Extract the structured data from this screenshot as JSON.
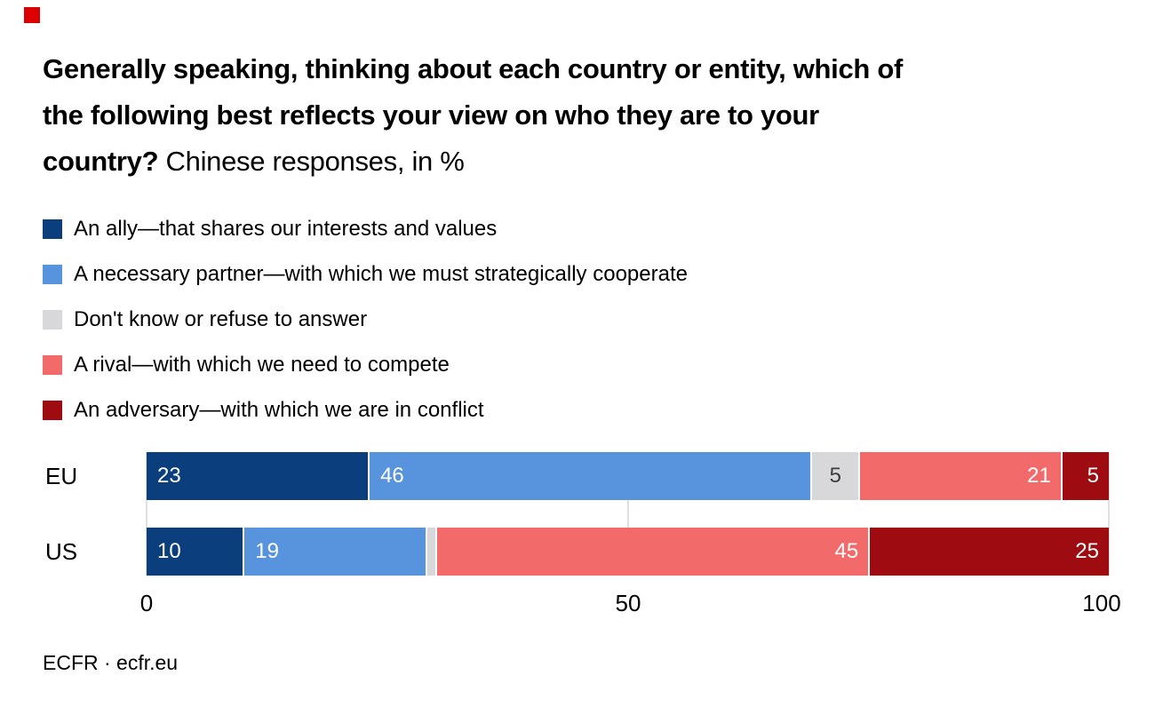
{
  "logo": {
    "name": "ecfr-red-square",
    "color": "#dd0000"
  },
  "title": {
    "line1": "Generally speaking, thinking about each country or entity, which of",
    "line2": "the following best reflects your view on who they are to your",
    "line3_bold": "country?",
    "line3_regular": "Chinese responses, in %"
  },
  "legend": [
    {
      "label": "An ally—that shares our interests and values",
      "color": "#0a3e7d"
    },
    {
      "label": "A necessary partner—with which we must strategically cooperate",
      "color": "#5894de"
    },
    {
      "label": "Don't know or refuse to answer",
      "color": "#d8d8db"
    },
    {
      "label": "A rival—with which we need to compete",
      "color": "#f26a6a"
    },
    {
      "label": "An adversary—with which we are in conflict",
      "color": "#9e0b10"
    }
  ],
  "chart_data": {
    "type": "bar",
    "orientation": "horizontal-stacked",
    "title": "Generally speaking, thinking about each country or entity, which of the following best reflects your view on who they are to your country? Chinese responses, in %",
    "categories": [
      "EU",
      "US"
    ],
    "series": [
      {
        "name": "An ally—that shares our interests and values",
        "color": "#0a3e7d",
        "values": [
          23,
          10
        ],
        "labels": [
          "23",
          "10"
        ],
        "label_align": "left",
        "label_color": "#ffffff"
      },
      {
        "name": "A necessary partner—with which we must strategically cooperate",
        "color": "#5894de",
        "values": [
          46,
          19
        ],
        "labels": [
          "46",
          "19"
        ],
        "label_align": "left",
        "label_color": "#ffffff"
      },
      {
        "name": "Don't know or refuse to answer",
        "color": "#d8d8db",
        "values": [
          5,
          1
        ],
        "labels": [
          "5",
          ""
        ],
        "label_align": "center",
        "label_color": "#3d3d3d"
      },
      {
        "name": "A rival—with which we need to compete",
        "color": "#f26a6a",
        "values": [
          21,
          45
        ],
        "labels": [
          "21",
          "45"
        ],
        "label_align": "right",
        "label_color": "#ffffff"
      },
      {
        "name": "An adversary—with which we are in conflict",
        "color": "#9e0b10",
        "values": [
          5,
          25
        ],
        "labels": [
          "5",
          "25"
        ],
        "label_align": "right",
        "label_color": "#ffffff"
      }
    ],
    "xlim": [
      0,
      100
    ],
    "x_tick_positions": [
      0,
      50,
      100
    ],
    "x_tick_labels": [
      "0",
      "50",
      "100"
    ],
    "gridlines": {
      "positions": [
        0,
        50,
        100
      ],
      "color": "#e0e0e0"
    },
    "legend_position": "top-left"
  },
  "footer": {
    "text": "ECFR · ecfr.eu"
  }
}
